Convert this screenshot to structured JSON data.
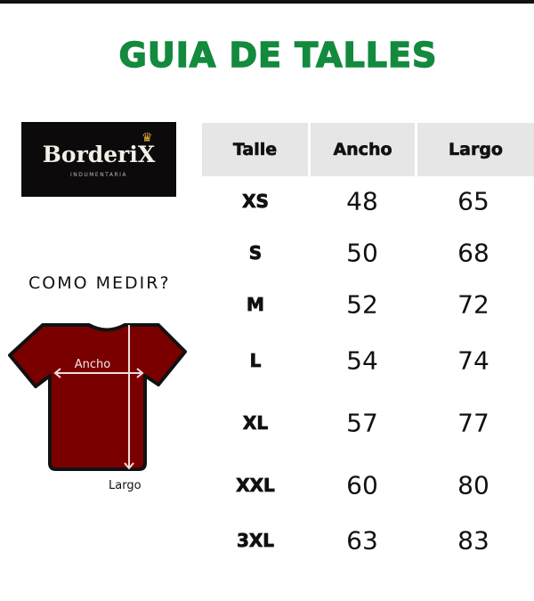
{
  "title": "GUIA DE TALLES",
  "logo": {
    "brand": "BorderiX",
    "tagline": "INDUMENTARIA",
    "icon": "crown-icon"
  },
  "how_to_measure": {
    "heading": "COMO MEDIR?",
    "width_label": "Ancho",
    "length_label": "Largo",
    "shirt_color": "#7a0000"
  },
  "table": {
    "headers": [
      "Talle",
      "Ancho",
      "Largo"
    ],
    "rows": [
      {
        "talle": "XS",
        "ancho": "48",
        "largo": "65"
      },
      {
        "talle": "S",
        "ancho": "50",
        "largo": "68"
      },
      {
        "talle": "M",
        "ancho": "52",
        "largo": "72"
      },
      {
        "talle": "L",
        "ancho": "54",
        "largo": "74"
      },
      {
        "talle": "XL",
        "ancho": "57",
        "largo": "77"
      },
      {
        "talle": "XXL",
        "ancho": "60",
        "largo": "80"
      },
      {
        "talle": "3XL",
        "ancho": "63",
        "largo": "83"
      }
    ]
  },
  "colors": {
    "title": "#138a3e",
    "header_bg": "#e6e6e6"
  }
}
